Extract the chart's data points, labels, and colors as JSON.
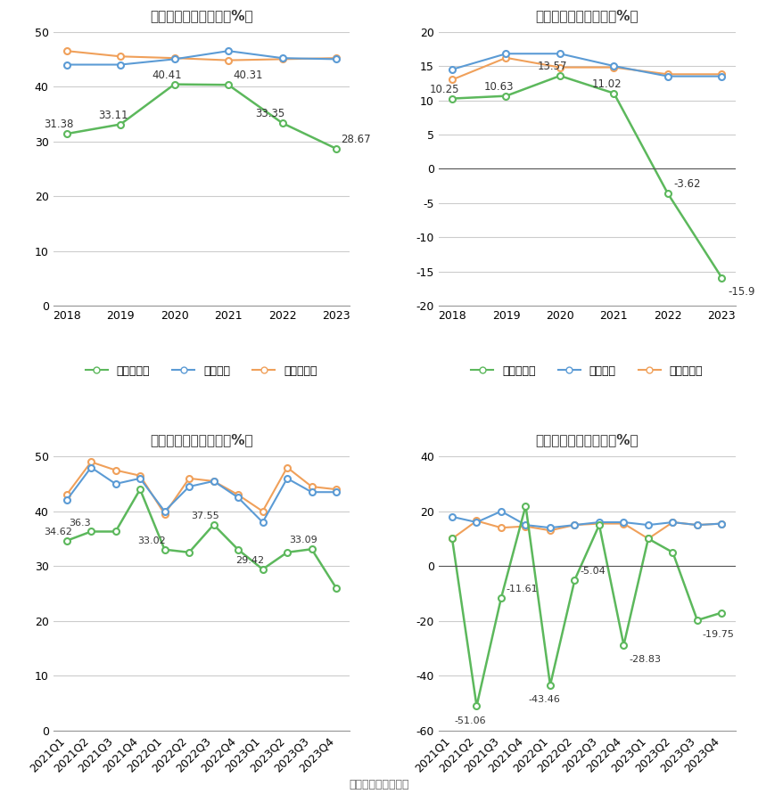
{
  "top_left": {
    "title": "历年毛利率变化情况（%）",
    "years": [
      "2018",
      "2019",
      "2020",
      "2021",
      "2022",
      "2023"
    ],
    "company": [
      31.38,
      33.11,
      40.41,
      40.31,
      33.35,
      28.67
    ],
    "industry_avg": [
      44.0,
      44.0,
      45.0,
      46.5,
      45.2,
      45.0
    ],
    "industry_med": [
      46.5,
      45.5,
      45.2,
      44.8,
      45.0,
      45.2
    ],
    "ylim": [
      0,
      50
    ],
    "yticks": [
      0,
      10,
      20,
      30,
      40,
      50
    ]
  },
  "top_right": {
    "title": "历年净利率变化情况（%）",
    "years": [
      "2018",
      "2019",
      "2020",
      "2021",
      "2022",
      "2023"
    ],
    "company": [
      10.25,
      10.63,
      13.57,
      11.02,
      -3.62,
      -15.9
    ],
    "industry_avg": [
      14.5,
      16.8,
      16.8,
      15.0,
      13.5,
      13.5
    ],
    "industry_med": [
      13.0,
      16.2,
      14.8,
      14.8,
      13.8,
      13.8
    ],
    "ylim": [
      -20,
      20
    ],
    "yticks": [
      -20,
      -15,
      -10,
      -5,
      0,
      5,
      10,
      15,
      20
    ]
  },
  "bot_left": {
    "title": "季度毛利率变化情况（%）",
    "quarters": [
      "2021Q1",
      "2021Q2",
      "2021Q3",
      "2021Q4",
      "2022Q1",
      "2022Q2",
      "2022Q3",
      "2022Q4",
      "2023Q1",
      "2023Q2",
      "2023Q3",
      "2023Q4"
    ],
    "company": [
      34.62,
      36.3,
      36.3,
      44.0,
      33.02,
      32.5,
      37.55,
      33.0,
      29.42,
      32.5,
      33.09,
      26.0
    ],
    "industry_avg": [
      42.0,
      48.0,
      45.0,
      46.0,
      40.0,
      44.5,
      45.5,
      42.5,
      38.0,
      46.0,
      43.5,
      43.5
    ],
    "industry_med": [
      43.0,
      49.0,
      47.5,
      46.5,
      39.5,
      46.0,
      45.5,
      43.0,
      40.0,
      48.0,
      44.5,
      44.0
    ],
    "ylim": [
      0,
      50
    ],
    "yticks": [
      0,
      10,
      20,
      30,
      40,
      50
    ]
  },
  "bot_right": {
    "title": "季度净利率变化情况（%）",
    "quarters": [
      "2021Q1",
      "2021Q2",
      "2021Q3",
      "2021Q4",
      "2022Q1",
      "2022Q2",
      "2022Q3",
      "2022Q4",
      "2023Q1",
      "2023Q2",
      "2023Q3",
      "2023Q4"
    ],
    "company": [
      10.0,
      -51.06,
      -11.61,
      22.0,
      -43.46,
      -5.04,
      15.0,
      -28.83,
      10.0,
      5.0,
      -19.75,
      -17.0
    ],
    "industry_avg": [
      18.0,
      16.0,
      20.0,
      15.0,
      14.0,
      15.0,
      16.0,
      16.0,
      15.0,
      16.0,
      15.0,
      15.5
    ],
    "industry_med": [
      10.0,
      16.5,
      14.0,
      14.5,
      13.0,
      15.0,
      15.5,
      15.5,
      10.0,
      16.0,
      15.0,
      15.5
    ],
    "ylim": [
      -60,
      40
    ],
    "yticks": [
      -60,
      -40,
      -20,
      0,
      20,
      40
    ]
  },
  "color_company": "#5cb85c",
  "color_avg": "#5b9bd5",
  "color_med": "#f0a05a",
  "legend_company_gross": "公司毛利率",
  "legend_company_net": "公司净利率",
  "legend_avg": "行业均值",
  "legend_med": "行业中位数",
  "source_text": "数据来源：恒生聚源",
  "bg_color": "#ffffff",
  "grid_color": "#cccccc"
}
